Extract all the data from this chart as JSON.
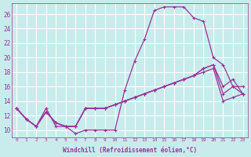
{
  "xlabel": "Windchill (Refroidissement éolien,°C)",
  "ylabel": "",
  "bg_color": "#c8ecec",
  "grid_color": "#ffffff",
  "line_color": "#993399",
  "x_hours": [
    0,
    1,
    2,
    3,
    4,
    5,
    6,
    7,
    8,
    9,
    10,
    11,
    12,
    13,
    14,
    15,
    16,
    17,
    18,
    19,
    20,
    21,
    22,
    23
  ],
  "series1": [
    13,
    11.5,
    10.5,
    13,
    10.5,
    10.5,
    9.5,
    10,
    10,
    10,
    10,
    15.5,
    19.5,
    22.5,
    26.5,
    27,
    27,
    27,
    25.5,
    25,
    20,
    19,
    16,
    16
  ],
  "series2": [
    13,
    11.5,
    10.5,
    12.5,
    11,
    10.5,
    10.5,
    13,
    13,
    13,
    13.5,
    14,
    14.5,
    15,
    15.5,
    16,
    16.5,
    17,
    17.5,
    18,
    18.5,
    14,
    14.5,
    15
  ],
  "series3": [
    13,
    11.5,
    10.5,
    12.5,
    11,
    10.5,
    10.5,
    13,
    13,
    13,
    13.5,
    14,
    14.5,
    15,
    15.5,
    16,
    16.5,
    17,
    17.5,
    18.5,
    19,
    15,
    16,
    15
  ],
  "series4": [
    13,
    11.5,
    10.5,
    12.5,
    11,
    10.5,
    10.5,
    13,
    13,
    13,
    13.5,
    14,
    14.5,
    15,
    15.5,
    16,
    16.5,
    17,
    17.5,
    18.5,
    19,
    16,
    17,
    15
  ],
  "ylim": [
    9,
    27.5
  ],
  "yticks": [
    10,
    12,
    14,
    16,
    18,
    20,
    22,
    24,
    26
  ],
  "xticks": [
    0,
    1,
    2,
    3,
    4,
    5,
    6,
    7,
    8,
    9,
    10,
    11,
    12,
    13,
    14,
    15,
    16,
    17,
    18,
    19,
    20,
    21,
    22,
    23
  ]
}
